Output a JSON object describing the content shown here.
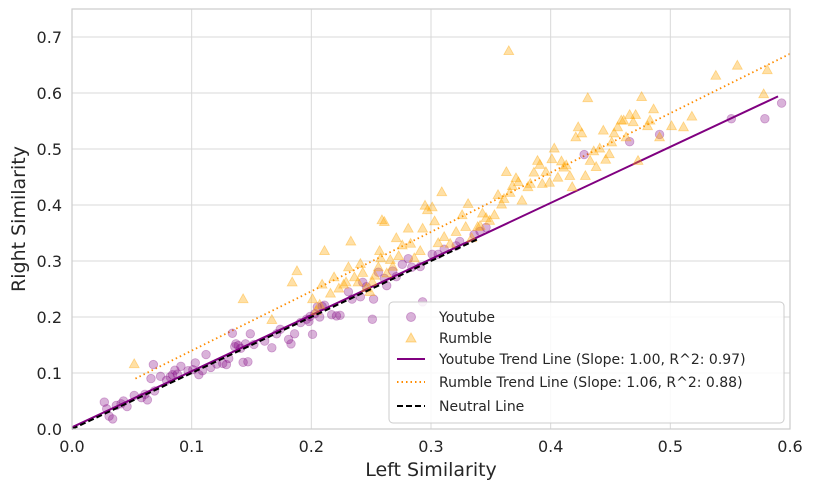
{
  "chart_data": {
    "type": "scatter",
    "xlabel": "Left Similarity",
    "ylabel": "Right Similarity",
    "xlim": [
      0.0,
      0.6
    ],
    "ylim": [
      0.0,
      0.75
    ],
    "xticks": [
      "0.0",
      "0.1",
      "0.2",
      "0.3",
      "0.4",
      "0.5",
      "0.6"
    ],
    "yticks": [
      "0.0",
      "0.1",
      "0.2",
      "0.3",
      "0.4",
      "0.5",
      "0.6",
      "0.7"
    ],
    "grid": true,
    "legend_position": "bottom-right",
    "colors": {
      "youtube": "#800080",
      "rumble": "#ffa500",
      "youtube_trend": "#800080",
      "rumble_trend": "#ff8c00",
      "neutral": "#000000",
      "grid": "#d9d9d9",
      "frame": "#cccccc"
    },
    "legend": {
      "youtube": "Youtube",
      "rumble": "Rumble",
      "youtube_trend": "Youtube Trend Line (Slope: 1.00, R^2: 0.97)",
      "rumble_trend": "Rumble Trend Line (Slope: 1.06, R^2: 0.88)",
      "neutral": "Neutral Line"
    },
    "trend_lines": {
      "youtube_trend": {
        "x": [
          0.0,
          0.59
        ],
        "y": [
          0.003,
          0.594
        ]
      },
      "rumble_trend": {
        "x": [
          0.053,
          0.6
        ],
        "y": [
          0.09,
          0.67
        ]
      },
      "neutral": {
        "x": [
          0.0,
          0.34
        ],
        "y": [
          0.0,
          0.34
        ]
      }
    },
    "series": [
      {
        "name": "Youtube",
        "marker": "circle",
        "points": [
          [
            0.027,
            0.048
          ],
          [
            0.029,
            0.036
          ],
          [
            0.031,
            0.023
          ],
          [
            0.034,
            0.018
          ],
          [
            0.037,
            0.042
          ],
          [
            0.041,
            0.045
          ],
          [
            0.043,
            0.05
          ],
          [
            0.046,
            0.04
          ],
          [
            0.052,
            0.06
          ],
          [
            0.058,
            0.056
          ],
          [
            0.061,
            0.062
          ],
          [
            0.063,
            0.052
          ],
          [
            0.066,
            0.09
          ],
          [
            0.068,
            0.115
          ],
          [
            0.069,
            0.068
          ],
          [
            0.074,
            0.094
          ],
          [
            0.079,
            0.087
          ],
          [
            0.082,
            0.093
          ],
          [
            0.084,
            0.097
          ],
          [
            0.086,
            0.105
          ],
          [
            0.088,
            0.098
          ],
          [
            0.091,
            0.112
          ],
          [
            0.097,
            0.104
          ],
          [
            0.101,
            0.106
          ],
          [
            0.103,
            0.118
          ],
          [
            0.106,
            0.097
          ],
          [
            0.109,
            0.104
          ],
          [
            0.112,
            0.133
          ],
          [
            0.116,
            0.11
          ],
          [
            0.121,
            0.116
          ],
          [
            0.126,
            0.117
          ],
          [
            0.129,
            0.115
          ],
          [
            0.131,
            0.126
          ],
          [
            0.134,
            0.171
          ],
          [
            0.136,
            0.147
          ],
          [
            0.137,
            0.152
          ],
          [
            0.139,
            0.149
          ],
          [
            0.141,
            0.144
          ],
          [
            0.143,
            0.119
          ],
          [
            0.145,
            0.152
          ],
          [
            0.147,
            0.12
          ],
          [
            0.149,
            0.17
          ],
          [
            0.152,
            0.151
          ],
          [
            0.161,
            0.157
          ],
          [
            0.167,
            0.145
          ],
          [
            0.171,
            0.17
          ],
          [
            0.174,
            0.178
          ],
          [
            0.181,
            0.16
          ],
          [
            0.183,
            0.152
          ],
          [
            0.186,
            0.17
          ],
          [
            0.191,
            0.19
          ],
          [
            0.196,
            0.196
          ],
          [
            0.198,
            0.192
          ],
          [
            0.199,
            0.201
          ],
          [
            0.201,
            0.169
          ],
          [
            0.203,
            0.206
          ],
          [
            0.205,
            0.218
          ],
          [
            0.207,
            0.2
          ],
          [
            0.209,
            0.219
          ],
          [
            0.211,
            0.221
          ],
          [
            0.217,
            0.204
          ],
          [
            0.221,
            0.202
          ],
          [
            0.224,
            0.203
          ],
          [
            0.231,
            0.245
          ],
          [
            0.234,
            0.232
          ],
          [
            0.241,
            0.236
          ],
          [
            0.243,
            0.262
          ],
          [
            0.246,
            0.254
          ],
          [
            0.251,
            0.196
          ],
          [
            0.252,
            0.232
          ],
          [
            0.256,
            0.28
          ],
          [
            0.261,
            0.269
          ],
          [
            0.263,
            0.256
          ],
          [
            0.268,
            0.282
          ],
          [
            0.271,
            0.272
          ],
          [
            0.276,
            0.294
          ],
          [
            0.281,
            0.304
          ],
          [
            0.284,
            0.289
          ],
          [
            0.291,
            0.29
          ],
          [
            0.293,
            0.227
          ],
          [
            0.301,
            0.312
          ],
          [
            0.306,
            0.312
          ],
          [
            0.311,
            0.321
          ],
          [
            0.321,
            0.327
          ],
          [
            0.324,
            0.335
          ],
          [
            0.336,
            0.347
          ],
          [
            0.341,
            0.353
          ],
          [
            0.346,
            0.36
          ],
          [
            0.428,
            0.49
          ],
          [
            0.466,
            0.513
          ],
          [
            0.491,
            0.526
          ],
          [
            0.551,
            0.554
          ],
          [
            0.579,
            0.554
          ],
          [
            0.593,
            0.582
          ]
        ]
      },
      {
        "name": "Rumble",
        "marker": "triangle",
        "points": [
          [
            0.052,
            0.116
          ],
          [
            0.143,
            0.232
          ],
          [
            0.167,
            0.195
          ],
          [
            0.184,
            0.262
          ],
          [
            0.188,
            0.282
          ],
          [
            0.201,
            0.232
          ],
          [
            0.204,
            0.211
          ],
          [
            0.207,
            0.222
          ],
          [
            0.209,
            0.258
          ],
          [
            0.211,
            0.318
          ],
          [
            0.216,
            0.242
          ],
          [
            0.219,
            0.271
          ],
          [
            0.223,
            0.251
          ],
          [
            0.227,
            0.258
          ],
          [
            0.229,
            0.262
          ],
          [
            0.231,
            0.289
          ],
          [
            0.233,
            0.335
          ],
          [
            0.236,
            0.271
          ],
          [
            0.239,
            0.262
          ],
          [
            0.241,
            0.295
          ],
          [
            0.243,
            0.279
          ],
          [
            0.246,
            0.252
          ],
          [
            0.249,
            0.245
          ],
          [
            0.251,
            0.263
          ],
          [
            0.253,
            0.274
          ],
          [
            0.256,
            0.289
          ],
          [
            0.257,
            0.318
          ],
          [
            0.258,
            0.305
          ],
          [
            0.259,
            0.373
          ],
          [
            0.261,
            0.37
          ],
          [
            0.263,
            0.278
          ],
          [
            0.266,
            0.302
          ],
          [
            0.268,
            0.29
          ],
          [
            0.271,
            0.341
          ],
          [
            0.273,
            0.309
          ],
          [
            0.276,
            0.328
          ],
          [
            0.281,
            0.358
          ],
          [
            0.283,
            0.331
          ],
          [
            0.286,
            0.305
          ],
          [
            0.291,
            0.318
          ],
          [
            0.293,
            0.358
          ],
          [
            0.295,
            0.399
          ],
          [
            0.297,
            0.391
          ],
          [
            0.301,
            0.396
          ],
          [
            0.303,
            0.371
          ],
          [
            0.306,
            0.332
          ],
          [
            0.309,
            0.423
          ],
          [
            0.311,
            0.343
          ],
          [
            0.316,
            0.331
          ],
          [
            0.321,
            0.352
          ],
          [
            0.326,
            0.382
          ],
          [
            0.329,
            0.361
          ],
          [
            0.331,
            0.402
          ],
          [
            0.334,
            0.341
          ],
          [
            0.339,
            0.361
          ],
          [
            0.341,
            0.363
          ],
          [
            0.343,
            0.385
          ],
          [
            0.346,
            0.377
          ],
          [
            0.349,
            0.372
          ],
          [
            0.353,
            0.382
          ],
          [
            0.356,
            0.418
          ],
          [
            0.359,
            0.401
          ],
          [
            0.361,
            0.411
          ],
          [
            0.363,
            0.459
          ],
          [
            0.365,
            0.675
          ],
          [
            0.366,
            0.422
          ],
          [
            0.368,
            0.434
          ],
          [
            0.371,
            0.448
          ],
          [
            0.373,
            0.441
          ],
          [
            0.376,
            0.408
          ],
          [
            0.381,
            0.432
          ],
          [
            0.383,
            0.438
          ],
          [
            0.386,
            0.458
          ],
          [
            0.389,
            0.479
          ],
          [
            0.391,
            0.472
          ],
          [
            0.393,
            0.438
          ],
          [
            0.396,
            0.459
          ],
          [
            0.399,
            0.44
          ],
          [
            0.401,
            0.482
          ],
          [
            0.403,
            0.501
          ],
          [
            0.406,
            0.449
          ],
          [
            0.409,
            0.478
          ],
          [
            0.411,
            0.467
          ],
          [
            0.413,
            0.471
          ],
          [
            0.416,
            0.452
          ],
          [
            0.418,
            0.432
          ],
          [
            0.421,
            0.521
          ],
          [
            0.423,
            0.539
          ],
          [
            0.426,
            0.528
          ],
          [
            0.429,
            0.452
          ],
          [
            0.431,
            0.591
          ],
          [
            0.433,
            0.479
          ],
          [
            0.436,
            0.496
          ],
          [
            0.438,
            0.468
          ],
          [
            0.441,
            0.501
          ],
          [
            0.444,
            0.533
          ],
          [
            0.446,
            0.481
          ],
          [
            0.449,
            0.491
          ],
          [
            0.451,
            0.512
          ],
          [
            0.453,
            0.528
          ],
          [
            0.456,
            0.539
          ],
          [
            0.459,
            0.551
          ],
          [
            0.461,
            0.551
          ],
          [
            0.463,
            0.521
          ],
          [
            0.466,
            0.561
          ],
          [
            0.469,
            0.548
          ],
          [
            0.471,
            0.561
          ],
          [
            0.473,
            0.479
          ],
          [
            0.476,
            0.593
          ],
          [
            0.481,
            0.541
          ],
          [
            0.483,
            0.551
          ],
          [
            0.486,
            0.571
          ],
          [
            0.491,
            0.521
          ],
          [
            0.501,
            0.541
          ],
          [
            0.511,
            0.539
          ],
          [
            0.518,
            0.558
          ],
          [
            0.538,
            0.631
          ],
          [
            0.556,
            0.649
          ],
          [
            0.581,
            0.641
          ],
          [
            0.578,
            0.598
          ]
        ]
      }
    ]
  }
}
